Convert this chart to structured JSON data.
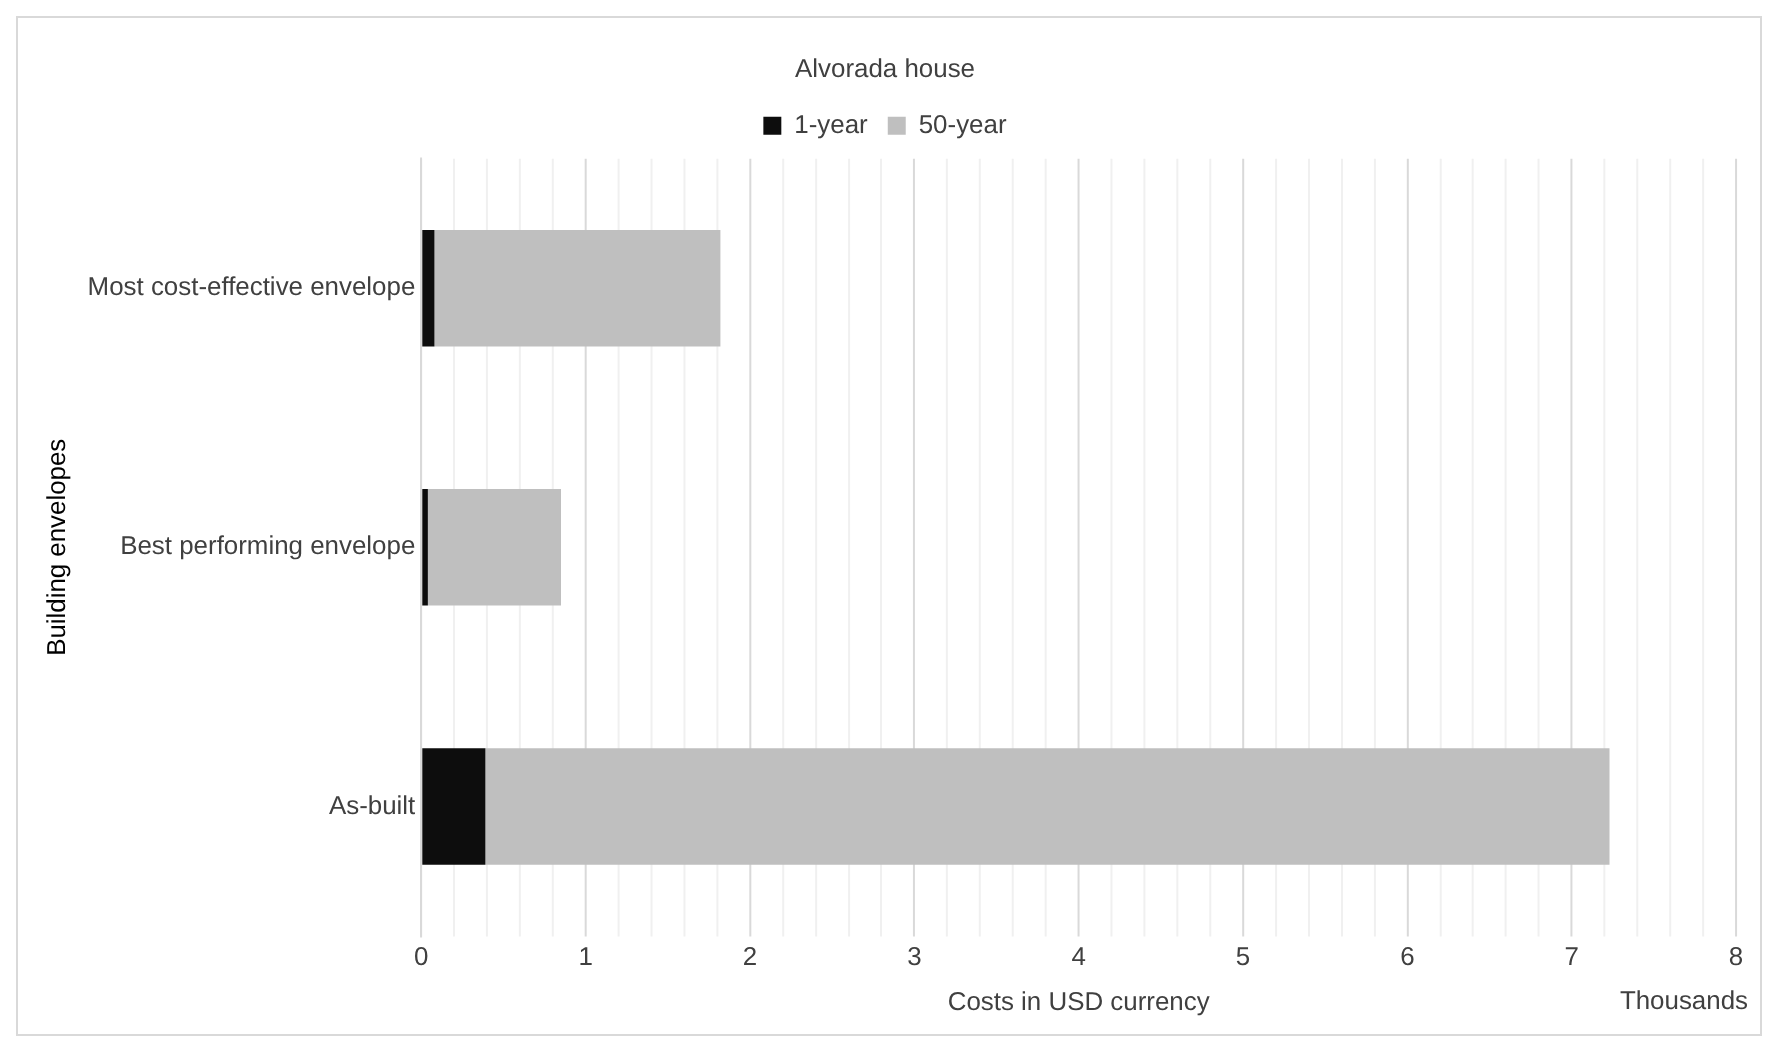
{
  "chart_data": {
    "type": "bar",
    "orientation": "horizontal",
    "stacked": true,
    "title": "Alvorada house",
    "xlabel": "Costs in USD currency",
    "ylabel": "Building envelopes",
    "annotations": [
      "Thousands"
    ],
    "categories": [
      "Most cost-effective envelope",
      "Best performing envelope",
      "As-built"
    ],
    "series": [
      {
        "name": "1-year",
        "color": "#0d0d0d",
        "values": [
          0.08,
          0.04,
          0.39
        ]
      },
      {
        "name": "50-year",
        "color": "#bfbfbf",
        "values": [
          1.74,
          0.81,
          6.84
        ]
      }
    ],
    "xlim": [
      0,
      8
    ],
    "xticks": [
      0,
      {
        "value": 0.2,
        "label": null
      },
      {
        "value": 0.4,
        "label": null
      },
      {
        "value": 0.6,
        "label": null
      },
      {
        "value": 0.8,
        "label": null
      },
      1,
      {
        "value": 1.2,
        "label": null
      },
      {
        "value": 1.4,
        "label": null
      },
      {
        "value": 1.6,
        "label": null
      },
      {
        "value": 1.8,
        "label": null
      },
      2,
      {
        "value": 2.2,
        "label": null
      },
      {
        "value": 2.4,
        "label": null
      },
      {
        "value": 2.6,
        "label": null
      },
      {
        "value": 2.8,
        "label": null
      },
      3,
      {
        "value": 3.2,
        "label": null
      },
      {
        "value": 3.4,
        "label": null
      },
      {
        "value": 3.6,
        "label": null
      },
      {
        "value": 3.8,
        "label": null
      },
      4,
      {
        "value": 4.2,
        "label": null
      },
      {
        "value": 4.4,
        "label": null
      },
      {
        "value": 4.6,
        "label": null
      },
      {
        "value": 4.8,
        "label": null
      },
      5,
      {
        "value": 5.2,
        "label": null
      },
      {
        "value": 5.4,
        "label": null
      },
      {
        "value": 5.6,
        "label": null
      },
      {
        "value": 5.8,
        "label": null
      },
      6,
      {
        "value": 6.2,
        "label": null
      },
      {
        "value": 6.4,
        "label": null
      },
      {
        "value": 6.6,
        "label": null
      },
      {
        "value": 6.8,
        "label": null
      },
      7,
      {
        "value": 7.2,
        "label": null
      },
      {
        "value": 7.4,
        "label": null
      },
      {
        "value": 7.6,
        "label": null
      },
      {
        "value": 7.8,
        "label": null
      },
      8
    ],
    "grid": "x",
    "legend": "top"
  }
}
